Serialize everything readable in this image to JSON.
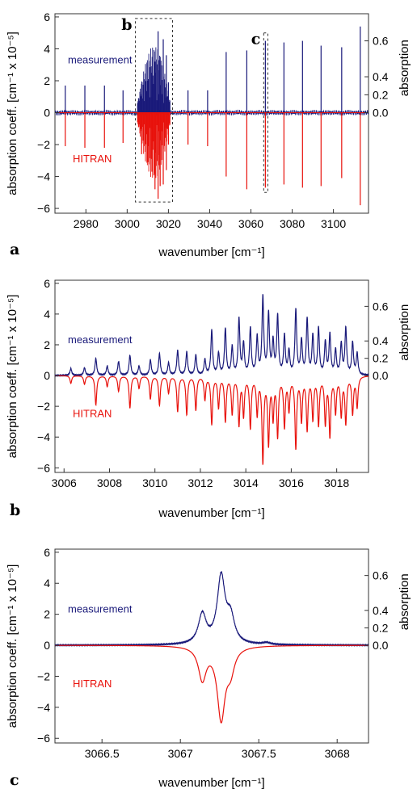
{
  "colors": {
    "measurement": "#1a1a7a",
    "hitran": "#e8120c"
  },
  "y_left_label": "absorption coeff. [cm⁻¹ x 10⁻⁵]",
  "y_right_label": "absorption",
  "chart_data": [
    {
      "type": "line",
      "panel_label": "a",
      "xlabel": "wavenumber [cm⁻¹]",
      "xlim": [
        2965,
        3117
      ],
      "ylim": [
        -6.3,
        6.2
      ],
      "x_ticks": [
        2980,
        3000,
        3020,
        3040,
        3060,
        3080,
        3100
      ],
      "y_ticks": [
        -6,
        -4,
        -2,
        0,
        2,
        4,
        6
      ],
      "y2_ticks": [
        0.0,
        0.2,
        0.4,
        0.6
      ],
      "y2_tick_positions": [
        0,
        1.12,
        2.25,
        4.5
      ],
      "series": [
        {
          "name": "measurement",
          "style": "stick",
          "peaks": [
            [
              2970,
              1.7
            ],
            [
              2979.5,
              1.7
            ],
            [
              2989,
              1.7
            ],
            [
              2998,
              1.4
            ],
            [
              3007,
              1.8
            ],
            [
              3010,
              2.0
            ],
            [
              3012,
              2.5
            ],
            [
              3013.5,
              3.2
            ],
            [
              3015,
              5.1
            ],
            [
              3016,
              3.5
            ],
            [
              3017.5,
              4.6
            ],
            [
              3019,
              3.6
            ],
            [
              3020,
              1.9
            ],
            [
              3029.5,
              1.4
            ],
            [
              3039,
              1.4
            ],
            [
              3048,
              3.8
            ],
            [
              3058,
              3.9
            ],
            [
              3067,
              4.5
            ],
            [
              3076,
              4.4
            ],
            [
              3085,
              4.5
            ],
            [
              3094,
              4.2
            ],
            [
              3104,
              4.1
            ],
            [
              3113,
              5.4
            ]
          ]
        },
        {
          "name": "HITRAN",
          "style": "stick",
          "peaks": [
            [
              2970,
              -2.1
            ],
            [
              2979.5,
              -2.2
            ],
            [
              2989,
              -2.2
            ],
            [
              2998,
              -1.9
            ],
            [
              3007,
              -2.6
            ],
            [
              3010,
              -3.1
            ],
            [
              3012,
              -3.7
            ],
            [
              3013.5,
              -4.8
            ],
            [
              3015,
              -5.4
            ],
            [
              3016,
              -4.6
            ],
            [
              3017.5,
              -4.5
            ],
            [
              3019,
              -3.6
            ],
            [
              3020,
              -2.0
            ],
            [
              3029.5,
              -2.0
            ],
            [
              3039,
              -2.1
            ],
            [
              3048,
              -4.0
            ],
            [
              3058,
              -4.8
            ],
            [
              3067,
              -4.7
            ],
            [
              3076,
              -4.5
            ],
            [
              3085,
              -4.7
            ],
            [
              3094,
              -4.6
            ],
            [
              3104,
              -4.1
            ],
            [
              3113,
              -5.8
            ]
          ]
        }
      ],
      "annotations": [
        {
          "text": "b",
          "box_x": [
            3004,
            3022
          ],
          "box_y": [
            -5.6,
            5.9
          ]
        },
        {
          "text": "c",
          "box_x": [
            3066.2,
            3068.2
          ],
          "box_y": [
            -5.0,
            5.0
          ]
        }
      ]
    },
    {
      "type": "line",
      "panel_label": "b",
      "xlabel": "wavenumber [cm⁻¹]",
      "xlim": [
        3005.6,
        3019.4
      ],
      "ylim": [
        -6.3,
        6.2
      ],
      "x_ticks": [
        3006,
        3008,
        3010,
        3012,
        3014,
        3016,
        3018
      ],
      "y_ticks": [
        -6,
        -4,
        -2,
        0,
        2,
        4,
        6
      ],
      "y2_ticks": [
        0.0,
        0.2,
        0.4,
        0.6
      ],
      "y2_tick_positions": [
        0,
        1.12,
        2.25,
        4.5
      ],
      "series": [
        {
          "name": "measurement",
          "style": "lorentz",
          "width": 0.045,
          "peaks": [
            [
              3006.3,
              0.45
            ],
            [
              3006.9,
              0.5
            ],
            [
              3007.4,
              1.1
            ],
            [
              3007.9,
              0.6
            ],
            [
              3008.4,
              0.9
            ],
            [
              3008.9,
              1.3
            ],
            [
              3009.3,
              0.6
            ],
            [
              3009.8,
              1.0
            ],
            [
              3010.2,
              1.4
            ],
            [
              3010.6,
              0.8
            ],
            [
              3011.0,
              1.6
            ],
            [
              3011.4,
              1.5
            ],
            [
              3011.8,
              1.3
            ],
            [
              3012.2,
              1.0
            ],
            [
              3012.5,
              2.9
            ],
            [
              3012.8,
              1.4
            ],
            [
              3013.1,
              3.0
            ],
            [
              3013.4,
              1.8
            ],
            [
              3013.7,
              3.6
            ],
            [
              3013.9,
              2.0
            ],
            [
              3014.2,
              3.0
            ],
            [
              3014.5,
              2.4
            ],
            [
              3014.75,
              5.0
            ],
            [
              3015.0,
              3.9
            ],
            [
              3015.2,
              2.1
            ],
            [
              3015.4,
              3.8
            ],
            [
              3015.7,
              2.5
            ],
            [
              3015.9,
              1.5
            ],
            [
              3016.2,
              4.2
            ],
            [
              3016.45,
              2.2
            ],
            [
              3016.7,
              3.6
            ],
            [
              3016.95,
              2.5
            ],
            [
              3017.2,
              3.0
            ],
            [
              3017.5,
              2.1
            ],
            [
              3017.7,
              2.6
            ],
            [
              3017.95,
              1.6
            ],
            [
              3018.2,
              2.0
            ],
            [
              3018.4,
              3.0
            ],
            [
              3018.7,
              2.1
            ],
            [
              3018.9,
              1.4
            ]
          ]
        },
        {
          "name": "HITRAN",
          "style": "lorentz",
          "width": 0.045,
          "peaks": [
            [
              3006.3,
              -0.5
            ],
            [
              3006.9,
              -0.55
            ],
            [
              3007.4,
              -1.9
            ],
            [
              3007.9,
              -0.7
            ],
            [
              3008.4,
              -1.0
            ],
            [
              3008.9,
              -2.1
            ],
            [
              3009.3,
              -0.8
            ],
            [
              3009.8,
              -1.5
            ],
            [
              3010.2,
              -1.9
            ],
            [
              3010.6,
              -1.1
            ],
            [
              3011.0,
              -2.3
            ],
            [
              3011.4,
              -2.5
            ],
            [
              3011.8,
              -2.2
            ],
            [
              3012.2,
              -1.5
            ],
            [
              3012.5,
              -3.1
            ],
            [
              3012.8,
              -2.0
            ],
            [
              3013.1,
              -2.9
            ],
            [
              3013.4,
              -2.4
            ],
            [
              3013.7,
              -3.1
            ],
            [
              3013.9,
              -2.5
            ],
            [
              3014.2,
              -3.3
            ],
            [
              3014.5,
              -2.4
            ],
            [
              3014.75,
              -5.5
            ],
            [
              3015.0,
              -4.3
            ],
            [
              3015.2,
              -2.6
            ],
            [
              3015.4,
              -3.8
            ],
            [
              3015.7,
              -3.2
            ],
            [
              3015.9,
              -2.1
            ],
            [
              3016.2,
              -4.6
            ],
            [
              3016.45,
              -2.8
            ],
            [
              3016.7,
              -3.4
            ],
            [
              3016.95,
              -2.7
            ],
            [
              3017.2,
              -3.1
            ],
            [
              3017.5,
              -3.0
            ],
            [
              3017.7,
              -3.8
            ],
            [
              3017.95,
              -2.3
            ],
            [
              3018.2,
              -2.5
            ],
            [
              3018.4,
              -3.0
            ],
            [
              3018.7,
              -2.4
            ],
            [
              3018.9,
              -2.0
            ]
          ]
        }
      ]
    },
    {
      "type": "line",
      "panel_label": "c",
      "xlabel": "wavenumber [cm⁻¹]",
      "xlim": [
        3066.2,
        3068.2
      ],
      "ylim": [
        -6.3,
        6.2
      ],
      "x_ticks": [
        3066.5,
        3067.0,
        3067.5,
        3068.0
      ],
      "y_ticks": [
        -6,
        -4,
        -2,
        0,
        2,
        4,
        6
      ],
      "y2_ticks": [
        0.0,
        0.2,
        0.4,
        0.6
      ],
      "y2_tick_positions": [
        0,
        1.12,
        2.25,
        4.5
      ],
      "series": [
        {
          "name": "measurement",
          "style": "lorentz",
          "width": 0.03,
          "peaks": [
            [
              3067.14,
              1.9
            ],
            [
              3067.26,
              4.3
            ],
            [
              3067.32,
              1.6
            ],
            [
              3067.55,
              0.12
            ]
          ]
        },
        {
          "name": "HITRAN",
          "style": "lorentz",
          "width": 0.03,
          "peaks": [
            [
              3067.14,
              -2.1
            ],
            [
              3067.26,
              -4.6
            ],
            [
              3067.32,
              -1.4
            ]
          ]
        }
      ]
    }
  ]
}
